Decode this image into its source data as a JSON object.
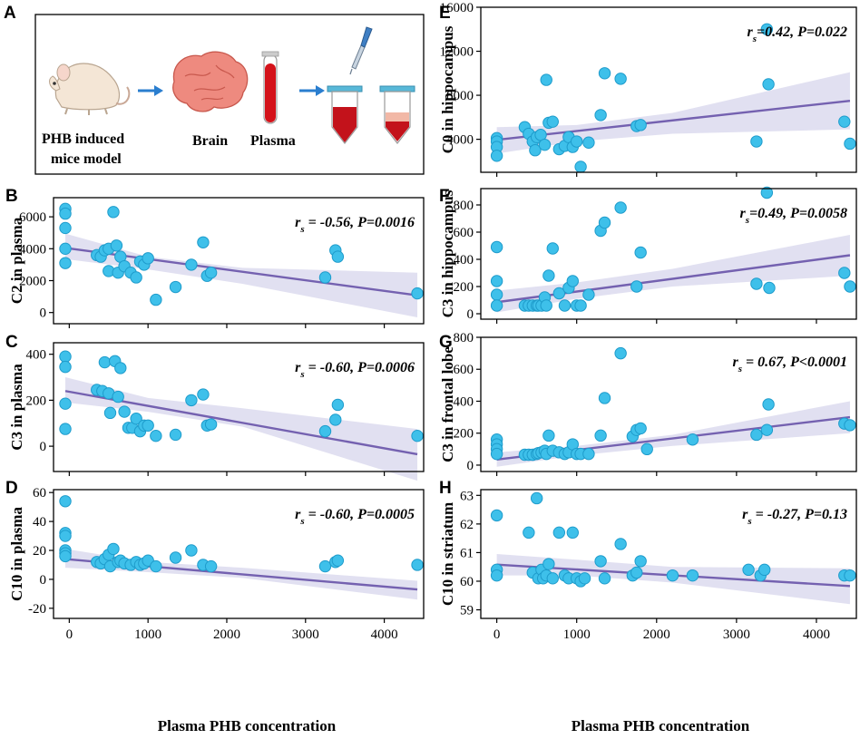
{
  "schematic": {
    "panel_label": "A",
    "mouse_label_line1": "PHB induced",
    "mouse_label_line2": "mice model",
    "brain_label": "Brain",
    "plasma_label": "Plasma"
  },
  "xlabel_left": "Plasma PHB concentration",
  "xlabel_right": "Plasma PHB concentration",
  "chart_data": [
    {
      "id": "B",
      "type": "scatter",
      "panel_label": "B",
      "ylabel": "C2 in plasma",
      "xlabel": "Plasma PHB concentration",
      "stat_rs": "-0.56, P=0.0016",
      "xlim": [
        -200,
        4500
      ],
      "ylim": [
        -700,
        7200
      ],
      "xticks": [
        0,
        1000,
        2000,
        3000,
        4000
      ],
      "yticks": [
        0,
        2000,
        4000,
        6000
      ],
      "show_xtick_labels": false,
      "fit": {
        "x": [
          -50,
          4420
        ],
        "y": [
          4050,
          1080
        ]
      },
      "band": {
        "x": [
          -50,
          1000,
          2200,
          4420
        ],
        "lower": [
          3350,
          2700,
          1800,
          -300
        ],
        "upper": [
          4950,
          3500,
          2800,
          2500
        ]
      },
      "points": [
        [
          -50,
          6500
        ],
        [
          -50,
          6200
        ],
        [
          -50,
          5300
        ],
        [
          -50,
          4000
        ],
        [
          -50,
          3100
        ],
        [
          350,
          3600
        ],
        [
          400,
          3500
        ],
        [
          450,
          3900
        ],
        [
          500,
          4000
        ],
        [
          500,
          2600
        ],
        [
          560,
          6300
        ],
        [
          600,
          4200
        ],
        [
          620,
          2500
        ],
        [
          650,
          3500
        ],
        [
          700,
          2900
        ],
        [
          780,
          2500
        ],
        [
          850,
          2200
        ],
        [
          900,
          3200
        ],
        [
          950,
          3000
        ],
        [
          1000,
          3400
        ],
        [
          1100,
          800
        ],
        [
          1350,
          1600
        ],
        [
          1550,
          3000
        ],
        [
          1700,
          4400
        ],
        [
          1750,
          2300
        ],
        [
          1800,
          2500
        ],
        [
          3250,
          2200
        ],
        [
          3380,
          3900
        ],
        [
          3410,
          3500
        ],
        [
          4420,
          1200
        ]
      ]
    },
    {
      "id": "C",
      "type": "scatter",
      "panel_label": "C",
      "ylabel": "C3 in plasma",
      "xlabel": "Plasma PHB concentration",
      "stat_rs": "-0.60, P=0.0006",
      "xlim": [
        -200,
        4500
      ],
      "ylim": [
        -110,
        450
      ],
      "xticks": [
        0,
        1000,
        2000,
        3000,
        4000
      ],
      "yticks": [
        0,
        200,
        400
      ],
      "show_xtick_labels": false,
      "fit": {
        "x": [
          -50,
          4420
        ],
        "y": [
          240,
          -35
        ]
      },
      "band": {
        "x": [
          -50,
          1000,
          2200,
          4420
        ],
        "lower": [
          190,
          150,
          85,
          -150
        ],
        "upper": [
          300,
          210,
          165,
          75
        ]
      },
      "points": [
        [
          -50,
          390
        ],
        [
          -50,
          345
        ],
        [
          -50,
          185
        ],
        [
          -50,
          75
        ],
        [
          350,
          245
        ],
        [
          420,
          240
        ],
        [
          450,
          365
        ],
        [
          500,
          230
        ],
        [
          520,
          145
        ],
        [
          580,
          370
        ],
        [
          620,
          215
        ],
        [
          650,
          340
        ],
        [
          700,
          150
        ],
        [
          750,
          80
        ],
        [
          800,
          80
        ],
        [
          850,
          120
        ],
        [
          900,
          65
        ],
        [
          950,
          90
        ],
        [
          1000,
          90
        ],
        [
          1100,
          45
        ],
        [
          1350,
          50
        ],
        [
          1550,
          200
        ],
        [
          1700,
          225
        ],
        [
          1750,
          90
        ],
        [
          1800,
          95
        ],
        [
          3250,
          65
        ],
        [
          3380,
          115
        ],
        [
          3410,
          180
        ],
        [
          4420,
          45
        ]
      ]
    },
    {
      "id": "D",
      "type": "scatter",
      "panel_label": "D",
      "ylabel": "C10 in plasma",
      "xlabel": "Plasma PHB concentration",
      "stat_rs": "-0.60, P=0.0005",
      "xlim": [
        -200,
        4500
      ],
      "ylim": [
        -27,
        62
      ],
      "xticks": [
        0,
        1000,
        2000,
        3000,
        4000
      ],
      "yticks": [
        -20,
        0,
        20,
        40,
        60
      ],
      "show_xtick_labels": true,
      "fit": {
        "x": [
          -50,
          4420
        ],
        "y": [
          14,
          -7
        ]
      },
      "band": {
        "x": [
          -50,
          1000,
          2200,
          4420
        ],
        "lower": [
          8,
          5,
          1,
          -14
        ],
        "upper": [
          21,
          12,
          8,
          -1
        ]
      },
      "points": [
        [
          -50,
          54
        ],
        [
          -50,
          32
        ],
        [
          -50,
          30
        ],
        [
          -50,
          20
        ],
        [
          -50,
          18
        ],
        [
          -50,
          16
        ],
        [
          350,
          12
        ],
        [
          400,
          11
        ],
        [
          450,
          14
        ],
        [
          500,
          17
        ],
        [
          520,
          9
        ],
        [
          560,
          21
        ],
        [
          620,
          12
        ],
        [
          650,
          13
        ],
        [
          700,
          11
        ],
        [
          780,
          10
        ],
        [
          850,
          12
        ],
        [
          900,
          10
        ],
        [
          950,
          11
        ],
        [
          1000,
          13
        ],
        [
          1100,
          9
        ],
        [
          1350,
          15
        ],
        [
          1550,
          20
        ],
        [
          1700,
          10
        ],
        [
          1800,
          9
        ],
        [
          3250,
          9
        ],
        [
          3380,
          12
        ],
        [
          3410,
          13
        ],
        [
          4420,
          10
        ]
      ]
    },
    {
      "id": "E",
      "type": "scatter",
      "panel_label": "E",
      "ylabel": "C0 in hippocampus",
      "xlabel": "Plasma PHB concentration",
      "stat_rs": "0.42, P=0.022",
      "stat_prefix": "",
      "xlim": [
        -200,
        4500
      ],
      "ylim": [
        1000,
        16000
      ],
      "xticks": [
        0,
        1000,
        2000,
        3000,
        4000
      ],
      "yticks": [
        4000,
        8000,
        12000,
        16000
      ],
      "show_xtick_labels": false,
      "fit": {
        "x": [
          0,
          4420
        ],
        "y": [
          3950,
          7500
        ]
      },
      "band": {
        "x": [
          0,
          1000,
          2200,
          4420
        ],
        "lower": [
          2700,
          3800,
          4500,
          4900
        ],
        "upper": [
          5100,
          5300,
          6400,
          10100
        ]
      },
      "points": [
        [
          0,
          4100
        ],
        [
          0,
          3800
        ],
        [
          0,
          3300
        ],
        [
          0,
          2500
        ],
        [
          350,
          5100
        ],
        [
          400,
          4500
        ],
        [
          450,
          3800
        ],
        [
          480,
          3000
        ],
        [
          500,
          4200
        ],
        [
          550,
          4400
        ],
        [
          600,
          3500
        ],
        [
          620,
          9400
        ],
        [
          650,
          5500
        ],
        [
          700,
          5600
        ],
        [
          780,
          3100
        ],
        [
          850,
          3400
        ],
        [
          900,
          4200
        ],
        [
          950,
          3300
        ],
        [
          1000,
          3800
        ],
        [
          1050,
          1500
        ],
        [
          1150,
          3700
        ],
        [
          1300,
          6200
        ],
        [
          1350,
          10000
        ],
        [
          1550,
          9500
        ],
        [
          1750,
          5200
        ],
        [
          1800,
          5300
        ],
        [
          3250,
          3800
        ],
        [
          3380,
          14000
        ],
        [
          3400,
          9000
        ],
        [
          4350,
          5600
        ],
        [
          4420,
          3600
        ]
      ]
    },
    {
      "id": "F",
      "type": "scatter",
      "panel_label": "F",
      "ylabel": "C3 in hippocampus",
      "xlabel": "Plasma PHB concentration",
      "stat_rs": "0.49, P=0.0058",
      "xlim": [
        -200,
        4500
      ],
      "ylim": [
        -40,
        920
      ],
      "xticks": [
        0,
        1000,
        2000,
        3000,
        4000
      ],
      "yticks": [
        0,
        200,
        400,
        600,
        800
      ],
      "show_xtick_labels": false,
      "fit": {
        "x": [
          0,
          4420
        ],
        "y": [
          85,
          430
        ]
      },
      "band": {
        "x": [
          0,
          1000,
          2200,
          4420
        ],
        "lower": [
          10,
          110,
          200,
          280
        ],
        "upper": [
          170,
          230,
          330,
          580
        ]
      },
      "points": [
        [
          0,
          490
        ],
        [
          0,
          240
        ],
        [
          0,
          140
        ],
        [
          0,
          60
        ],
        [
          350,
          60
        ],
        [
          400,
          60
        ],
        [
          450,
          60
        ],
        [
          500,
          60
        ],
        [
          520,
          60
        ],
        [
          560,
          60
        ],
        [
          600,
          120
        ],
        [
          620,
          60
        ],
        [
          650,
          280
        ],
        [
          700,
          480
        ],
        [
          780,
          150
        ],
        [
          850,
          60
        ],
        [
          900,
          190
        ],
        [
          950,
          240
        ],
        [
          1000,
          60
        ],
        [
          1050,
          60
        ],
        [
          1150,
          140
        ],
        [
          1300,
          610
        ],
        [
          1350,
          670
        ],
        [
          1550,
          780
        ],
        [
          1750,
          200
        ],
        [
          1800,
          450
        ],
        [
          3250,
          220
        ],
        [
          3380,
          890
        ],
        [
          3410,
          190
        ],
        [
          4350,
          300
        ],
        [
          4420,
          200
        ]
      ]
    },
    {
      "id": "G",
      "type": "scatter",
      "panel_label": "G",
      "ylabel": "C3 in frontal lobe",
      "xlabel": "Plasma PHB concentration",
      "stat_rs": " 0.67, P<0.0001",
      "xlim": [
        -200,
        4500
      ],
      "ylim": [
        -40,
        800
      ],
      "xticks": [
        0,
        1000,
        2000,
        3000,
        4000
      ],
      "yticks": [
        0,
        200,
        400,
        600,
        800
      ],
      "show_xtick_labels": false,
      "fit": {
        "x": [
          0,
          4420
        ],
        "y": [
          35,
          300
        ]
      },
      "band": {
        "x": [
          0,
          1000,
          2200,
          4420
        ],
        "lower": [
          -10,
          60,
          120,
          200
        ],
        "upper": [
          80,
          120,
          190,
          400
        ]
      },
      "points": [
        [
          0,
          160
        ],
        [
          0,
          130
        ],
        [
          0,
          100
        ],
        [
          0,
          70
        ],
        [
          350,
          65
        ],
        [
          400,
          65
        ],
        [
          450,
          65
        ],
        [
          500,
          70
        ],
        [
          520,
          75
        ],
        [
          560,
          80
        ],
        [
          600,
          90
        ],
        [
          620,
          70
        ],
        [
          650,
          185
        ],
        [
          700,
          90
        ],
        [
          780,
          80
        ],
        [
          850,
          70
        ],
        [
          900,
          80
        ],
        [
          950,
          130
        ],
        [
          1000,
          70
        ],
        [
          1050,
          70
        ],
        [
          1150,
          70
        ],
        [
          1300,
          185
        ],
        [
          1350,
          420
        ],
        [
          1550,
          700
        ],
        [
          1700,
          180
        ],
        [
          1750,
          220
        ],
        [
          1800,
          230
        ],
        [
          1880,
          100
        ],
        [
          2450,
          160
        ],
        [
          3250,
          190
        ],
        [
          3380,
          220
        ],
        [
          3400,
          380
        ],
        [
          4350,
          260
        ],
        [
          4420,
          250
        ]
      ]
    },
    {
      "id": "H",
      "type": "scatter",
      "panel_label": "H",
      "ylabel": "C10 in striatum",
      "xlabel": "Plasma PHB concentration",
      "stat_rs": "-0.27, P=0.13",
      "xlim": [
        -200,
        4500
      ],
      "ylim": [
        58.7,
        63.2
      ],
      "xticks": [
        0,
        1000,
        2000,
        3000,
        4000
      ],
      "yticks": [
        59,
        60,
        61,
        62,
        63
      ],
      "show_xtick_labels": true,
      "fit": {
        "x": [
          0,
          4420
        ],
        "y": [
          60.58,
          59.83
        ]
      },
      "band": {
        "x": [
          0,
          1000,
          2200,
          4420
        ],
        "lower": [
          60.2,
          60.2,
          59.95,
          59.2
        ],
        "upper": [
          60.95,
          60.75,
          60.5,
          60.45
        ]
      },
      "points": [
        [
          0,
          62.3
        ],
        [
          0,
          60.4
        ],
        [
          0,
          60.2
        ],
        [
          400,
          61.7
        ],
        [
          450,
          60.3
        ],
        [
          500,
          62.9
        ],
        [
          520,
          60.1
        ],
        [
          560,
          60.4
        ],
        [
          580,
          60.1
        ],
        [
          620,
          60.2
        ],
        [
          650,
          60.6
        ],
        [
          700,
          60.1
        ],
        [
          780,
          61.7
        ],
        [
          850,
          60.2
        ],
        [
          900,
          60.1
        ],
        [
          950,
          61.7
        ],
        [
          1000,
          60.1
        ],
        [
          1050,
          60.0
        ],
        [
          1100,
          60.1
        ],
        [
          1300,
          60.7
        ],
        [
          1350,
          60.1
        ],
        [
          1550,
          61.3
        ],
        [
          1700,
          60.2
        ],
        [
          1750,
          60.3
        ],
        [
          1800,
          60.7
        ],
        [
          2200,
          60.2
        ],
        [
          2450,
          60.2
        ],
        [
          3150,
          60.4
        ],
        [
          3300,
          60.2
        ],
        [
          3350,
          60.4
        ],
        [
          4350,
          60.2
        ],
        [
          4420,
          60.2
        ]
      ]
    }
  ]
}
